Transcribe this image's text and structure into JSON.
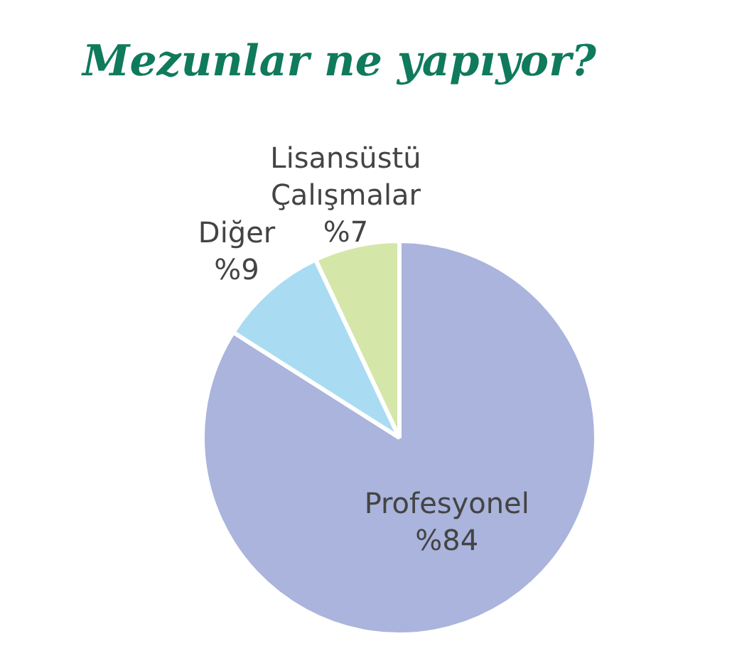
{
  "chart_data": {
    "type": "pie",
    "title": "Mezunlar ne yapıyor?",
    "categories": [
      "Profesyonel",
      "Diğer",
      "Lisansüstü Çalışmalar"
    ],
    "values": [
      84,
      9,
      7
    ],
    "colors": [
      "#aab4dc",
      "#a9dcf2",
      "#d5e6a9"
    ],
    "value_labels": [
      "%84",
      "%9",
      "%7"
    ],
    "legend": false
  }
}
